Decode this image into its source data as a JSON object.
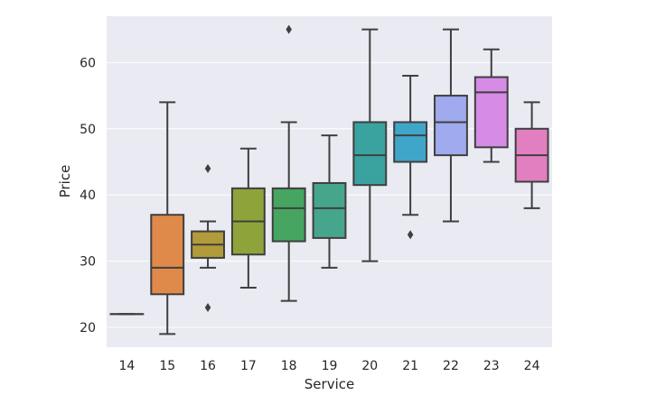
{
  "chart_data": {
    "type": "box",
    "xlabel": "Service",
    "ylabel": "Price",
    "ylim": [
      17,
      67
    ],
    "yticks": [
      20,
      30,
      40,
      50,
      60
    ],
    "grid": true,
    "categories": [
      "14",
      "15",
      "16",
      "17",
      "18",
      "19",
      "20",
      "21",
      "22",
      "23",
      "24"
    ],
    "boxes": [
      {
        "category": "14",
        "whisker_low": 22,
        "q1": 22,
        "median": 22,
        "q3": 22,
        "whisker_high": 22,
        "outliers": [],
        "color": "#e8a07f"
      },
      {
        "category": "15",
        "whisker_low": 19,
        "q1": 25,
        "median": 29,
        "q3": 37,
        "whisker_high": 54,
        "outliers": [],
        "color": "#df8a4a"
      },
      {
        "category": "16",
        "whisker_low": 29,
        "q1": 30.5,
        "median": 32.5,
        "q3": 34.5,
        "whisker_high": 36,
        "outliers": [
          23,
          44
        ],
        "color": "#b29b3b"
      },
      {
        "category": "17",
        "whisker_low": 26,
        "q1": 31,
        "median": 36,
        "q3": 41,
        "whisker_high": 47,
        "outliers": [],
        "color": "#8ea43b"
      },
      {
        "category": "18",
        "whisker_low": 24,
        "q1": 33,
        "median": 38,
        "q3": 41,
        "whisker_high": 51,
        "outliers": [
          65
        ],
        "color": "#46a560"
      },
      {
        "category": "19",
        "whisker_low": 29,
        "q1": 33.5,
        "median": 38,
        "q3": 41.8,
        "whisker_high": 49,
        "outliers": [],
        "color": "#46a58d"
      },
      {
        "category": "20",
        "whisker_low": 30,
        "q1": 41.5,
        "median": 46,
        "q3": 51,
        "whisker_high": 65,
        "outliers": [],
        "color": "#3aa39f"
      },
      {
        "category": "21",
        "whisker_low": 37,
        "q1": 45,
        "median": 49,
        "q3": 51,
        "whisker_high": 58,
        "outliers": [
          34
        ],
        "color": "#40a6c9"
      },
      {
        "category": "22",
        "whisker_low": 36,
        "q1": 46,
        "median": 51,
        "q3": 55,
        "whisker_high": 65,
        "outliers": [],
        "color": "#a0aaee"
      },
      {
        "category": "23",
        "whisker_low": 45,
        "q1": 47.2,
        "median": 55.5,
        "q3": 57.8,
        "whisker_high": 62,
        "outliers": [],
        "color": "#d68ce6"
      },
      {
        "category": "24",
        "whisker_low": 38,
        "q1": 42,
        "median": 46,
        "q3": 50,
        "whisker_high": 54,
        "outliers": [],
        "color": "#e27fc0"
      }
    ]
  }
}
